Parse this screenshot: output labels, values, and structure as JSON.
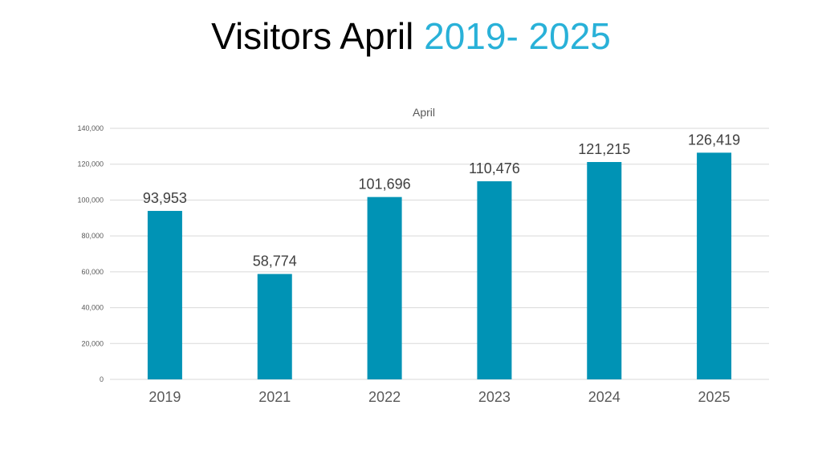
{
  "title": {
    "main": "Visitors April ",
    "accent": "2019- 2025",
    "accent_color": "#29b1d8"
  },
  "chart_data": {
    "type": "bar",
    "title": "April",
    "categories": [
      "2019",
      "2021",
      "2022",
      "2023",
      "2024",
      "2025"
    ],
    "values": [
      93953,
      58774,
      101696,
      110476,
      121215,
      126419
    ],
    "data_labels": [
      "93,953",
      "58,774",
      "101,696",
      "110,476",
      "121,215",
      "126,419"
    ],
    "xlabel": "",
    "ylabel": "",
    "ylim": [
      0,
      140000
    ],
    "yticks": [
      0,
      20000,
      40000,
      60000,
      80000,
      100000,
      120000,
      140000
    ],
    "ytick_labels": [
      "0",
      "20,000",
      "40,000",
      "60,000",
      "80,000",
      "100,000",
      "120,000",
      "140,000"
    ],
    "grid": true,
    "legend": "none",
    "bar_color": "#0093b5"
  }
}
